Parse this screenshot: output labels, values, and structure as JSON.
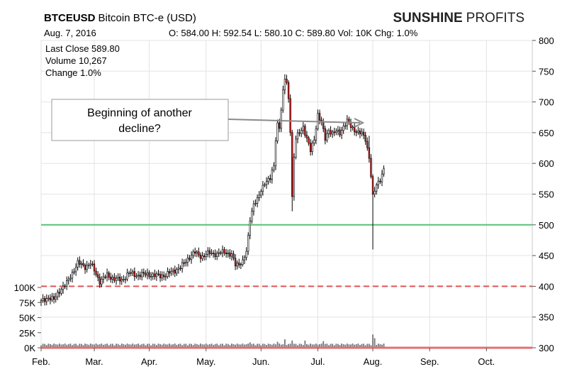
{
  "chart_data": {
    "type": "candlestick",
    "symbol": "BTCEUSD",
    "title_rest": "Bitcoin BTC-e (USD)",
    "brand_bold": "SUNSHINE",
    "brand_light": "PROFITS",
    "date": "Aug. 7, 2016",
    "ohlc_text": "O: 584.00 H: 592.54 L: 580.10 C: 589.80 Vol: 10K Chg: 1.0%",
    "stats": [
      "Last Close 589.80",
      "Volume 10,267",
      "Change 1.0%"
    ],
    "annotation": [
      "Beginning of another",
      "decline?"
    ],
    "y_ticks": [
      "800",
      "750",
      "700",
      "650",
      "600",
      "550",
      "500",
      "450",
      "400",
      "350",
      "300"
    ],
    "y_tick_values": [
      800,
      750,
      700,
      650,
      600,
      550,
      500,
      450,
      400,
      350,
      300
    ],
    "ylim": [
      300,
      800
    ],
    "vol_ticks": [
      "100K",
      "75K",
      "50K",
      "25K",
      "0K"
    ],
    "vol_tick_values": [
      100,
      75,
      50,
      25,
      0
    ],
    "vol_max": 100,
    "x_ticks": [
      "Feb.",
      "Mar.",
      "Apr.",
      "May.",
      "Jun.",
      "Jul.",
      "Aug.",
      "Sep.",
      "Oct."
    ],
    "x_tick_days": [
      0,
      29,
      59,
      90,
      120,
      151,
      181,
      212,
      243
    ],
    "x_end_day": 268,
    "support_line": 500,
    "resistance_dashed": 400,
    "price_anchors": [
      [
        0,
        375
      ],
      [
        4,
        382
      ],
      [
        7,
        378
      ],
      [
        10,
        393
      ],
      [
        14,
        405
      ],
      [
        18,
        427
      ],
      [
        20,
        438
      ],
      [
        24,
        432
      ],
      [
        27,
        437
      ],
      [
        30,
        420
      ],
      [
        32,
        408
      ],
      [
        36,
        418
      ],
      [
        40,
        412
      ],
      [
        44,
        410
      ],
      [
        48,
        422
      ],
      [
        52,
        418
      ],
      [
        58,
        420
      ],
      [
        62,
        417
      ],
      [
        68,
        418
      ],
      [
        72,
        425
      ],
      [
        76,
        430
      ],
      [
        80,
        445
      ],
      [
        84,
        455
      ],
      [
        88,
        448
      ],
      [
        92,
        455
      ],
      [
        96,
        452
      ],
      [
        100,
        457
      ],
      [
        104,
        450
      ],
      [
        106,
        435
      ],
      [
        110,
        440
      ],
      [
        112,
        455
      ],
      [
        113,
        480
      ],
      [
        114,
        510
      ],
      [
        116,
        535
      ],
      [
        118,
        540
      ],
      [
        120,
        555
      ],
      [
        122,
        570
      ],
      [
        125,
        575
      ],
      [
        127,
        595
      ],
      [
        128,
        640
      ],
      [
        129,
        665
      ],
      [
        130,
        660
      ],
      [
        132,
        715
      ],
      [
        133,
        738
      ],
      [
        134,
        730
      ],
      [
        135,
        705
      ],
      [
        136,
        655
      ],
      [
        137,
        545
      ],
      [
        138,
        610
      ],
      [
        139,
        640
      ],
      [
        141,
        650
      ],
      [
        143,
        660
      ],
      [
        145,
        640
      ],
      [
        147,
        620
      ],
      [
        149,
        640
      ],
      [
        151,
        680
      ],
      [
        153,
        665
      ],
      [
        155,
        640
      ],
      [
        157,
        655
      ],
      [
        159,
        648
      ],
      [
        161,
        652
      ],
      [
        163,
        650
      ],
      [
        165,
        660
      ],
      [
        167,
        668
      ],
      [
        169,
        660
      ],
      [
        171,
        655
      ],
      [
        173,
        650
      ],
      [
        175,
        648
      ],
      [
        177,
        640
      ],
      [
        179,
        610
      ],
      [
        180,
        580
      ],
      [
        181,
        545
      ],
      [
        182,
        555
      ],
      [
        183,
        565
      ],
      [
        185,
        575
      ],
      [
        187,
        590
      ]
    ],
    "wick_extremes": [
      [
        137,
        522
      ],
      [
        181,
        460
      ],
      [
        133,
        745
      ],
      [
        179,
        645
      ]
    ],
    "vol_spikes": [
      [
        181,
        22
      ],
      [
        182,
        16
      ],
      [
        137,
        12
      ],
      [
        133,
        14
      ],
      [
        129,
        10
      ],
      [
        144,
        12
      ],
      [
        154,
        11
      ],
      [
        114,
        9
      ]
    ]
  }
}
